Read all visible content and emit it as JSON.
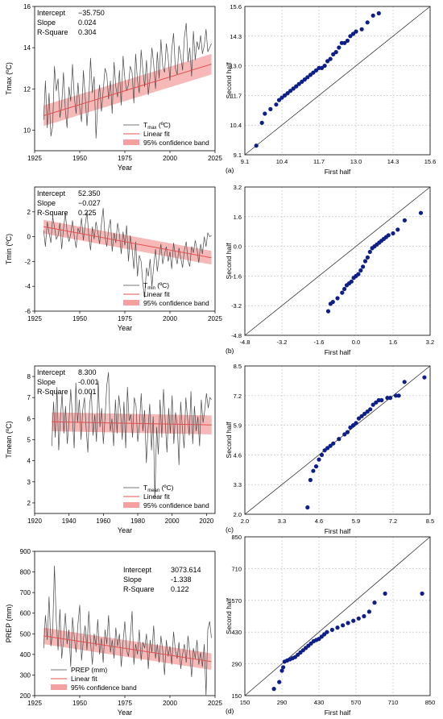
{
  "chart_data": [
    {
      "type": "line",
      "panel": "ts1",
      "stats": [
        [
          "Intercept",
          "−35.750"
        ],
        [
          "Slope",
          "0.024"
        ],
        [
          "R-Square",
          "0.304"
        ]
      ],
      "xlabel": "Year",
      "ylabel": "Tmax (ºC)",
      "xlim": [
        1925,
        2025
      ],
      "ylim": [
        9,
        16
      ],
      "xticks": [
        1925,
        1950,
        1975,
        2000,
        2025
      ],
      "yticks": [
        10,
        12,
        14,
        16
      ],
      "fit": {
        "slope": 0.024,
        "x0": 1930,
        "y0": 10.7,
        "x1": 2023,
        "y1": 13.2,
        "band": 0.5
      },
      "legend": {
        "series": "T",
        "sub": "max",
        "unit": " (ºC)",
        "fit": "Linear fit",
        "band": "95% confidence band"
      },
      "series": [
        {
          "x_start": 1930,
          "values": [
            10.5,
            12.4,
            10.1,
            11.8,
            9.7,
            10.2,
            13.1,
            11.9,
            12.5,
            10.6,
            11.2,
            12.8,
            11.0,
            10.1,
            12.1,
            11.4,
            13.2,
            11.6,
            10.8,
            12.3,
            11.1,
            10.4,
            12.9,
            11.7,
            10.2,
            11.5,
            13.5,
            11.8,
            12.6,
            9.6,
            11.3,
            12.2,
            10.9,
            11.9,
            13.0,
            12.7,
            11.5,
            12.4,
            10.8,
            13.3,
            12.1,
            11.6,
            12.9,
            11.2,
            13.6,
            12.5,
            11.9,
            12.2,
            13.1,
            12.8,
            11.3,
            13.7,
            12.4,
            11.8,
            13.9,
            12.9,
            12.1,
            13.4,
            11.7,
            12.6,
            14.0,
            13.2,
            12.0,
            13.8,
            12.5,
            14.4,
            13.1,
            12.8,
            14.2,
            13.5,
            12.4,
            13.9,
            14.7,
            13.0,
            12.7,
            14.1,
            13.6,
            12.9,
            14.5,
            15.2,
            13.3,
            14.0,
            12.6,
            14.8,
            13.4,
            14.3,
            13.9,
            14.6,
            13.7,
            14.1,
            14.9,
            13.8,
            14.0,
            14.2
          ]
        }
      ]
    },
    {
      "type": "scatter",
      "panel": "qq1",
      "xlabel": "First half",
      "ylabel": "Second half",
      "tag": "(a)",
      "lim": [
        9.1,
        15.6
      ],
      "ticks": [
        "9.1",
        "10.4",
        "11.7",
        "13.0",
        "14.3",
        "15.6"
      ],
      "x": [
        9.5,
        9.7,
        9.8,
        10.0,
        10.2,
        10.3,
        10.4,
        10.5,
        10.6,
        10.7,
        10.8,
        10.9,
        11.0,
        11.1,
        11.2,
        11.3,
        11.4,
        11.5,
        11.6,
        11.7,
        11.8,
        11.9,
        12.0,
        12.1,
        12.2,
        12.3,
        12.4,
        12.5,
        12.6,
        12.7,
        12.8,
        12.9,
        13.0,
        13.2,
        13.4,
        13.6,
        13.8
      ],
      "y": [
        9.5,
        10.5,
        10.9,
        11.1,
        11.3,
        11.5,
        11.6,
        11.7,
        11.8,
        11.9,
        12.0,
        12.1,
        12.2,
        12.3,
        12.4,
        12.5,
        12.6,
        12.7,
        12.8,
        12.9,
        12.9,
        13.0,
        13.2,
        13.3,
        13.5,
        13.6,
        13.8,
        14.0,
        14.0,
        14.1,
        14.3,
        14.4,
        14.5,
        14.6,
        14.9,
        15.2,
        15.3
      ]
    },
    {
      "type": "line",
      "panel": "ts2",
      "stats": [
        [
          "Intercept",
          "52.350"
        ],
        [
          "Slope",
          "−0.027"
        ],
        [
          "R-Square",
          "0.225"
        ]
      ],
      "xlabel": "Year",
      "ylabel": "Tmin (ºC)",
      "xlim": [
        1925,
        2025
      ],
      "ylim": [
        -6,
        4
      ],
      "xticks": [
        1925,
        1950,
        1975,
        2000,
        2025
      ],
      "yticks": [
        -6,
        -4,
        -2,
        0,
        2
      ],
      "fit": {
        "slope": -0.027,
        "x0": 1930,
        "y0": 0.8,
        "x1": 2023,
        "y1": -1.7,
        "band": 0.55
      },
      "legend": {
        "series": "T",
        "sub": "min",
        "unit": " (ºC)",
        "fit": "Linear fit",
        "band": "95% confidence band"
      },
      "series": [
        {
          "x_start": 1930,
          "values": [
            0.5,
            -0.8,
            1.2,
            0.3,
            -0.5,
            1.6,
            0.8,
            -0.2,
            0.1,
            1.1,
            -1.0,
            0.6,
            1.9,
            0.4,
            -0.4,
            0.2,
            1.3,
            0.0,
            -0.9,
            0.7,
            0.3,
            1.5,
            -0.3,
            0.9,
            2.0,
            0.1,
            -1.1,
            0.8,
            -0.2,
            1.2,
            0.4,
            -0.6,
            1.0,
            2.3,
            0.0,
            -0.8,
            0.6,
            1.4,
            -1.2,
            0.3,
            -0.5,
            1.1,
            0.2,
            -1.4,
            0.4,
            -0.7,
            0.9,
            -2.0,
            0.1,
            -1.0,
            -2.6,
            -0.4,
            -3.2,
            -1.5,
            -2.0,
            -3.8,
            -4.9,
            -2.5,
            -3.2,
            -1.8,
            -4.0,
            -2.4,
            -1.0,
            -2.8,
            -1.6,
            -0.6,
            -2.2,
            -1.4,
            -0.8,
            -2.0,
            -1.2,
            -2.6,
            -0.5,
            -1.5,
            -2.2,
            -0.9,
            -1.7,
            -2.5,
            -1.1,
            -0.4,
            -1.9,
            -2.4,
            -0.8,
            -1.3,
            -0.3,
            -1.0,
            -2.1,
            -0.6,
            -1.4,
            0.0,
            -0.8,
            0.3,
            0.0,
            0.1
          ]
        }
      ]
    },
    {
      "type": "scatter",
      "panel": "qq2",
      "xlabel": "First half",
      "ylabel": "Second half",
      "tag": "(b)",
      "lim": [
        -4.8,
        3.2
      ],
      "ticks": [
        "-4.8",
        "-3.2",
        "-1.6",
        "0.0",
        "1.6",
        "3.2"
      ],
      "x": [
        -1.2,
        -1.1,
        -1.0,
        -0.8,
        -0.6,
        -0.5,
        -0.4,
        -0.3,
        -0.2,
        -0.1,
        0.0,
        0.1,
        0.2,
        0.3,
        0.4,
        0.5,
        0.6,
        0.7,
        0.8,
        0.9,
        1.0,
        1.1,
        1.2,
        1.3,
        1.4,
        1.6,
        1.8,
        2.1,
        2.8
      ],
      "y": [
        -3.5,
        -3.1,
        -3.0,
        -2.8,
        -2.5,
        -2.3,
        -2.1,
        -2.0,
        -1.9,
        -1.7,
        -1.6,
        -1.5,
        -1.3,
        -1.1,
        -0.8,
        -0.6,
        -0.3,
        -0.1,
        0.0,
        0.1,
        0.2,
        0.3,
        0.4,
        0.5,
        0.6,
        0.7,
        0.9,
        1.4,
        1.8
      ]
    },
    {
      "type": "line",
      "panel": "ts3",
      "stats": [
        [
          "Intercept",
          "8.300"
        ],
        [
          "Slope",
          "-0.001"
        ],
        [
          "R-Square",
          "0.001"
        ]
      ],
      "xlabel": "Year",
      "ylabel": "Tmean (ºC)",
      "xlim": [
        1920,
        2025
      ],
      "ylim": [
        1.5,
        8.5
      ],
      "xticks": [
        1920,
        1940,
        1960,
        1980,
        2000,
        2020
      ],
      "yticks": [
        2,
        3,
        4,
        5,
        6,
        7,
        8
      ],
      "fit": {
        "slope": -0.001,
        "x0": 1930,
        "y0": 5.85,
        "x1": 2023,
        "y1": 5.7,
        "band": 0.45
      },
      "legend": {
        "series": "T",
        "sub": "mean",
        "unit": " (ºC)",
        "fit": "Linear fit",
        "band": "95% confidence band"
      },
      "series": [
        {
          "x_start": 1930,
          "values": [
            4.7,
            6.8,
            5.1,
            7.5,
            4.5,
            6.0,
            7.2,
            5.3,
            6.6,
            4.8,
            5.9,
            7.4,
            6.1,
            4.6,
            7.7,
            5.8,
            6.9,
            5.0,
            6.4,
            7.0,
            5.5,
            4.4,
            6.7,
            7.3,
            5.2,
            6.2,
            4.9,
            7.8,
            5.6,
            6.5,
            4.8,
            6.1,
            7.6,
            8.2,
            5.4,
            6.0,
            4.7,
            6.9,
            5.3,
            7.1,
            6.3,
            5.0,
            6.8,
            4.6,
            7.5,
            5.9,
            6.2,
            5.1,
            7.0,
            6.6,
            4.9,
            5.7,
            7.2,
            5.4,
            6.4,
            3.9,
            5.5,
            6.7,
            4.5,
            6.1,
            2.2,
            5.6,
            4.3,
            6.9,
            5.1,
            7.4,
            5.9,
            4.4,
            6.5,
            5.3,
            7.1,
            4.8,
            6.3,
            5.7,
            3.8,
            6.8,
            5.5,
            4.6,
            7.0,
            6.0,
            5.2,
            7.3,
            4.8,
            6.6,
            5.4,
            6.1,
            4.7,
            6.9,
            5.8,
            6.4,
            7.2,
            6.5,
            7.0,
            6.9
          ]
        }
      ]
    },
    {
      "type": "scatter",
      "panel": "qq3",
      "xlabel": "First half",
      "ylabel": "Second half",
      "tag": "(c)",
      "lim": [
        2.0,
        8.5
      ],
      "ticks": [
        "2.0",
        "3.3",
        "4.6",
        "5.9",
        "7.2",
        "8.5"
      ],
      "x": [
        4.2,
        4.3,
        4.4,
        4.5,
        4.6,
        4.7,
        4.8,
        4.9,
        5.0,
        5.1,
        5.3,
        5.5,
        5.6,
        5.7,
        5.8,
        5.9,
        6.0,
        6.1,
        6.2,
        6.3,
        6.4,
        6.5,
        6.6,
        6.7,
        6.8,
        7.0,
        7.1,
        7.3,
        7.4,
        7.6,
        8.3
      ],
      "y": [
        2.3,
        3.5,
        3.9,
        4.1,
        4.4,
        4.6,
        4.8,
        4.9,
        5.0,
        5.1,
        5.3,
        5.5,
        5.6,
        5.8,
        5.9,
        6.0,
        6.2,
        6.3,
        6.4,
        6.5,
        6.6,
        6.8,
        6.9,
        7.0,
        7.0,
        7.1,
        7.1,
        7.2,
        7.2,
        7.8,
        8.0
      ]
    },
    {
      "type": "line",
      "panel": "ts4",
      "stats": [
        [
          "Intercept",
          "3073.614"
        ],
        [
          "Slope",
          "-1.338"
        ],
        [
          "R-Square",
          "0.122"
        ]
      ],
      "xlabel": "Year",
      "ylabel": "PREP (mm)",
      "xlim": [
        1925,
        2025
      ],
      "ylim": [
        200,
        900
      ],
      "xticks": [
        1925,
        1950,
        1975,
        2000,
        2025
      ],
      "yticks": [
        200,
        300,
        400,
        500,
        600,
        700,
        800,
        900
      ],
      "fit": {
        "slope": -1.338,
        "x0": 1930,
        "y0": 490,
        "x1": 2023,
        "y1": 365,
        "band": 40
      },
      "legend": {
        "series": "PREP (mm)",
        "sub": "",
        "unit": "",
        "fit": "Linear fit",
        "band": "95% confidence band"
      },
      "series": [
        {
          "x_start": 1930,
          "values": [
            430,
            590,
            470,
            680,
            440,
            510,
            830,
            560,
            420,
            620,
            380,
            470,
            600,
            450,
            520,
            340,
            580,
            480,
            410,
            550,
            640,
            370,
            470,
            540,
            420,
            610,
            460,
            350,
            500,
            440,
            570,
            400,
            480,
            360,
            520,
            450,
            590,
            410,
            470,
            380,
            530,
            440,
            500,
            340,
            460,
            560,
            420,
            390,
            480,
            610,
            350,
            450,
            400,
            520,
            370,
            460,
            430,
            500,
            330,
            470,
            410,
            540,
            380,
            450,
            360,
            490,
            420,
            300,
            470,
            390,
            440,
            350,
            510,
            420,
            380,
            460,
            330,
            400,
            450,
            360,
            490,
            410,
            290,
            430,
            380,
            470,
            350,
            410,
            340,
            450,
            200,
            520,
            560,
            480
          ]
        }
      ]
    },
    {
      "type": "scatter",
      "panel": "qq4",
      "xlabel": "First half",
      "ylabel": "Second half",
      "tag": "(d)",
      "lim": [
        150,
        850
      ],
      "ticks": [
        "150",
        "290",
        "430",
        "570",
        "710",
        "850"
      ],
      "x": [
        260,
        280,
        290,
        295,
        300,
        310,
        320,
        330,
        340,
        350,
        360,
        370,
        380,
        390,
        400,
        410,
        420,
        430,
        440,
        450,
        460,
        480,
        500,
        520,
        540,
        560,
        580,
        600,
        620,
        640,
        680,
        820
      ],
      "y": [
        180,
        210,
        260,
        275,
        300,
        305,
        310,
        315,
        320,
        330,
        340,
        350,
        360,
        370,
        380,
        390,
        395,
        400,
        410,
        420,
        430,
        440,
        450,
        460,
        470,
        480,
        490,
        500,
        520,
        560,
        600,
        600
      ]
    }
  ]
}
